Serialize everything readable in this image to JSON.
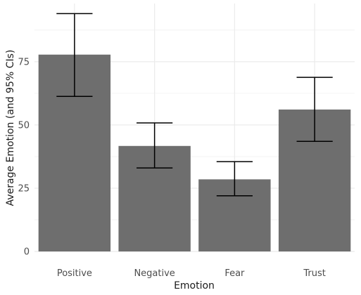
{
  "chart_data": {
    "type": "bar",
    "categories": [
      "Positive",
      "Negative",
      "Fear",
      "Trust"
    ],
    "values": [
      77.8,
      41.7,
      28.5,
      56.1
    ],
    "error_low": [
      61.3,
      33.0,
      22.0,
      43.5
    ],
    "error_high": [
      94.0,
      50.8,
      35.5,
      68.8
    ],
    "xlabel": "Emotion",
    "ylabel": "Average Emotion (and 95% CIs)",
    "ylim": [
      0,
      98
    ],
    "yticks": [
      0,
      25,
      50,
      75
    ],
    "grid": true,
    "bar_color": "#6e6e6e",
    "grid_color": "#ebebeb",
    "errorbar_color": "#000000"
  }
}
